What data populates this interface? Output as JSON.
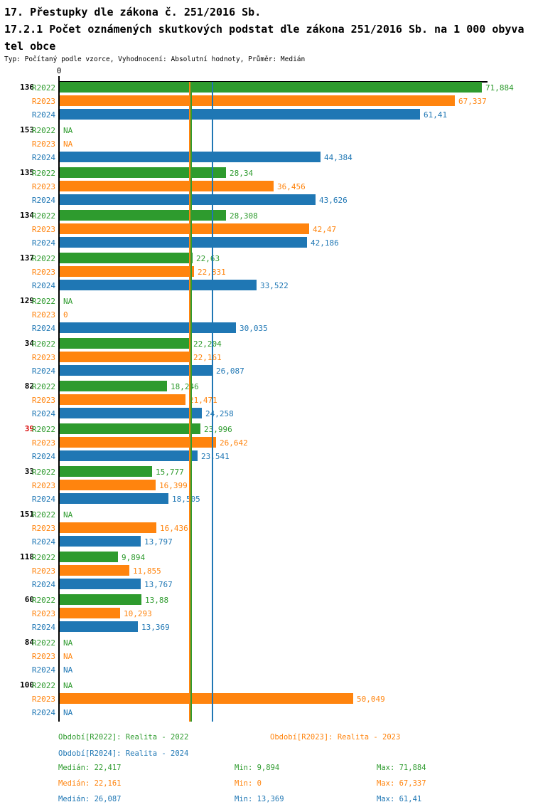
{
  "header": {
    "title": "17. Přestupky dle zákona č. 251/2016 Sb.",
    "subtitle": "17.2.1 Počet oznámených skutkových podstat dle zákona 251/2016 Sb. na 1 000 obyvatel obce",
    "meta": "Typ: Počítaný podle vzorce, Vyhodnocení: Absolutní hodnoty, Průměr: Medián"
  },
  "chart_data": {
    "type": "bar",
    "orientation": "horizontal",
    "title": "17. Přestupky dle zákona č. 251/2016 Sb.",
    "subtitle": "17.2.1 Počet oznámených skutkových podstat dle zákona 251/2016 Sb. na 1 000 obyvatel obce",
    "value_axis": {
      "zero_label": "0",
      "min": 0,
      "max_visible": 72.5,
      "grid": false
    },
    "highlight_color": "#D90000",
    "series": [
      {
        "id": "R2022",
        "label": "R2022",
        "color": "#2E9B2E",
        "median": 22.417,
        "median_display": "22,417"
      },
      {
        "id": "R2023",
        "label": "R2023",
        "color": "#FF840E",
        "median": 22.161,
        "median_display": "22,161"
      },
      {
        "id": "R2024",
        "label": "R2024",
        "color": "#1F77B4",
        "median": 26.087,
        "median_display": "26,087"
      }
    ],
    "categories": [
      "136",
      "153",
      "135",
      "134",
      "137",
      "129",
      "34",
      "82",
      "39",
      "33",
      "151",
      "118",
      "60",
      "84",
      "100"
    ],
    "groups": [
      {
        "category": "136",
        "highlight": false,
        "bars": [
          {
            "display": "71,884",
            "value": 71.884
          },
          {
            "display": "67,337",
            "value": 67.337
          },
          {
            "display": "61,41",
            "value": 61.41
          }
        ]
      },
      {
        "category": "153",
        "highlight": false,
        "bars": [
          {
            "display": "NA",
            "value": null
          },
          {
            "display": "NA",
            "value": null
          },
          {
            "display": "44,384",
            "value": 44.384
          }
        ]
      },
      {
        "category": "135",
        "highlight": false,
        "bars": [
          {
            "display": "28,34",
            "value": 28.34
          },
          {
            "display": "36,456",
            "value": 36.456
          },
          {
            "display": "43,626",
            "value": 43.626
          }
        ]
      },
      {
        "category": "134",
        "highlight": false,
        "bars": [
          {
            "display": "28,308",
            "value": 28.308
          },
          {
            "display": "42,47",
            "value": 42.47
          },
          {
            "display": "42,186",
            "value": 42.186
          }
        ]
      },
      {
        "category": "137",
        "highlight": false,
        "bars": [
          {
            "display": "22,63",
            "value": 22.63
          },
          {
            "display": "22,831",
            "value": 22.831
          },
          {
            "display": "33,522",
            "value": 33.522
          }
        ]
      },
      {
        "category": "129",
        "highlight": false,
        "bars": [
          {
            "display": "NA",
            "value": null
          },
          {
            "display": "0",
            "value": 0
          },
          {
            "display": "30,035",
            "value": 30.035
          }
        ]
      },
      {
        "category": "34",
        "highlight": false,
        "bars": [
          {
            "display": "22,204",
            "value": 22.204
          },
          {
            "display": "22,161",
            "value": 22.161
          },
          {
            "display": "26,087",
            "value": 26.087
          }
        ]
      },
      {
        "category": "82",
        "highlight": false,
        "bars": [
          {
            "display": "18,246",
            "value": 18.246
          },
          {
            "display": "21,471",
            "value": 21.471
          },
          {
            "display": "24,258",
            "value": 24.258
          }
        ]
      },
      {
        "category": "39",
        "highlight": true,
        "bars": [
          {
            "display": "23,996",
            "value": 23.996
          },
          {
            "display": "26,642",
            "value": 26.642
          },
          {
            "display": "23,541",
            "value": 23.541
          }
        ]
      },
      {
        "category": "33",
        "highlight": false,
        "bars": [
          {
            "display": "15,777",
            "value": 15.777
          },
          {
            "display": "16,399",
            "value": 16.399
          },
          {
            "display": "18,505",
            "value": 18.505
          }
        ]
      },
      {
        "category": "151",
        "highlight": false,
        "bars": [
          {
            "display": "NA",
            "value": null
          },
          {
            "display": "16,436",
            "value": 16.436
          },
          {
            "display": "13,797",
            "value": 13.797
          }
        ]
      },
      {
        "category": "118",
        "highlight": false,
        "bars": [
          {
            "display": "9,894",
            "value": 9.894
          },
          {
            "display": "11,855",
            "value": 11.855
          },
          {
            "display": "13,767",
            "value": 13.767
          }
        ]
      },
      {
        "category": "60",
        "highlight": false,
        "bars": [
          {
            "display": "13,88",
            "value": 13.88
          },
          {
            "display": "10,293",
            "value": 10.293
          },
          {
            "display": "13,369",
            "value": 13.369
          }
        ]
      },
      {
        "category": "84",
        "highlight": false,
        "bars": [
          {
            "display": "NA",
            "value": null
          },
          {
            "display": "NA",
            "value": null
          },
          {
            "display": "NA",
            "value": null
          }
        ]
      },
      {
        "category": "100",
        "highlight": false,
        "bars": [
          {
            "display": "NA",
            "value": null
          },
          {
            "display": "50,049",
            "value": 50.049
          },
          {
            "display": "NA",
            "value": null
          }
        ]
      }
    ],
    "legend_position": "bottom"
  },
  "footer": {
    "legend": [
      {
        "label": "Období[R2022]: Realita - 2022",
        "color": "#2E9B2E"
      },
      {
        "label": "Období[R2023]: Realita - 2023",
        "color": "#FF840E"
      },
      {
        "label": "Období[R2024]: Realita - 2024",
        "color": "#1F77B4"
      }
    ],
    "stats": [
      {
        "median": "Medián: 22,417",
        "min": "Min: 9,894",
        "max": "Max: 71,884",
        "color": "#2E9B2E"
      },
      {
        "median": "Medián: 22,161",
        "min": "Min: 0",
        "max": "Max: 67,337",
        "color": "#FF840E"
      },
      {
        "median": "Medián: 26,087",
        "min": "Min: 13,369",
        "max": "Max: 61,41",
        "color": "#1F77B4"
      }
    ]
  }
}
